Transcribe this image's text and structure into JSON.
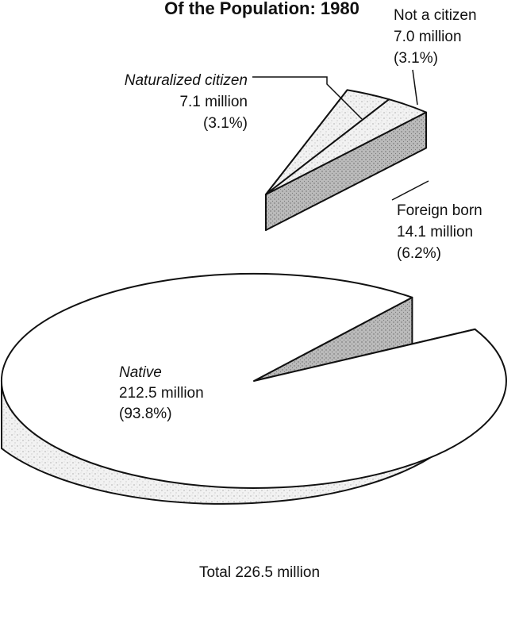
{
  "chart_data": {
    "type": "pie",
    "title": "Of the Population: 1980",
    "slices": [
      {
        "name": "Native",
        "value": 212.5,
        "value_label": "212.5 million",
        "percent": 93.8,
        "percent_label": "(93.8%)"
      },
      {
        "name": "Foreign born",
        "value": 14.1,
        "value_label": "14.1 million",
        "percent": 6.2,
        "percent_label": "(6.2%)",
        "parts": [
          {
            "name": "Naturalized citizen",
            "value": 7.1,
            "value_label": "7.1 million",
            "percent": 3.1,
            "percent_label": "(3.1%)"
          },
          {
            "name": "Not a citizen",
            "value": 7.0,
            "value_label": "7.0 million",
            "percent": 3.1,
            "percent_label": "(3.1%)"
          }
        ]
      }
    ],
    "total": 226.5,
    "total_label": "Total 226.5 million"
  }
}
